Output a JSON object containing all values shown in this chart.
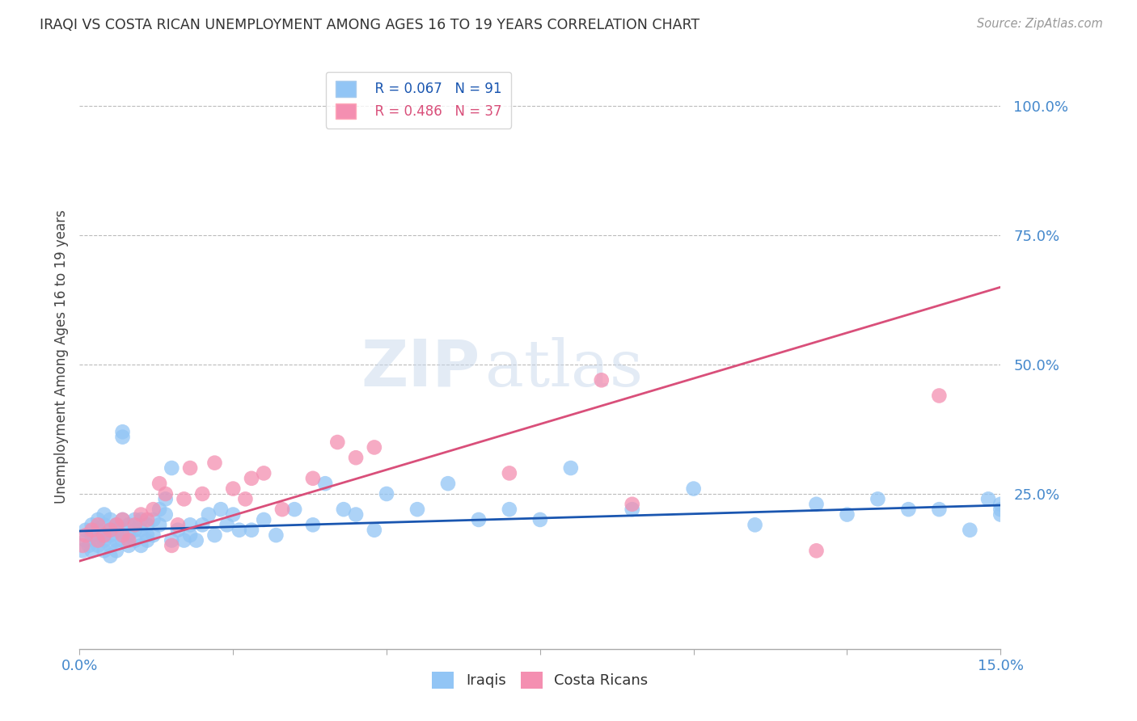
{
  "title": "IRAQI VS COSTA RICAN UNEMPLOYMENT AMONG AGES 16 TO 19 YEARS CORRELATION CHART",
  "source": "Source: ZipAtlas.com",
  "ylabel": "Unemployment Among Ages 16 to 19 years",
  "ytick_labels": [
    "100.0%",
    "75.0%",
    "50.0%",
    "25.0%"
  ],
  "ytick_values": [
    1.0,
    0.75,
    0.5,
    0.25
  ],
  "xlim": [
    0.0,
    0.15
  ],
  "ylim": [
    -0.05,
    1.08
  ],
  "legend_r1": "R = 0.067",
  "legend_n1": "N = 91",
  "legend_r2": "R = 0.486",
  "legend_n2": "N = 37",
  "iraqi_color": "#92C5F5",
  "costa_color": "#F48FB1",
  "iraqi_line_color": "#1A56B0",
  "costa_line_color": "#D94F7A",
  "watermark_zip": "ZIP",
  "watermark_atlas": "atlas",
  "grid_color": "#BBBBBB",
  "bg_color": "#FFFFFF",
  "title_color": "#333333",
  "source_color": "#999999",
  "tick_label_color": "#4488CC",
  "ylabel_color": "#444444",
  "iraqi_x": [
    0.0005,
    0.001,
    0.001,
    0.0015,
    0.002,
    0.002,
    0.002,
    0.003,
    0.003,
    0.003,
    0.003,
    0.004,
    0.004,
    0.004,
    0.004,
    0.004,
    0.005,
    0.005,
    0.005,
    0.005,
    0.005,
    0.006,
    0.006,
    0.006,
    0.006,
    0.007,
    0.007,
    0.007,
    0.007,
    0.007,
    0.008,
    0.008,
    0.008,
    0.009,
    0.009,
    0.009,
    0.01,
    0.01,
    0.01,
    0.011,
    0.011,
    0.011,
    0.012,
    0.012,
    0.013,
    0.013,
    0.014,
    0.014,
    0.015,
    0.015,
    0.016,
    0.017,
    0.018,
    0.018,
    0.019,
    0.02,
    0.021,
    0.022,
    0.023,
    0.024,
    0.025,
    0.026,
    0.028,
    0.03,
    0.032,
    0.035,
    0.038,
    0.04,
    0.043,
    0.045,
    0.048,
    0.05,
    0.055,
    0.06,
    0.065,
    0.07,
    0.075,
    0.08,
    0.09,
    0.1,
    0.11,
    0.12,
    0.125,
    0.13,
    0.135,
    0.14,
    0.145,
    0.148,
    0.15,
    0.15,
    0.15
  ],
  "iraqi_y": [
    0.14,
    0.16,
    0.18,
    0.15,
    0.17,
    0.19,
    0.14,
    0.15,
    0.18,
    0.2,
    0.16,
    0.14,
    0.17,
    0.19,
    0.16,
    0.21,
    0.15,
    0.18,
    0.2,
    0.17,
    0.13,
    0.16,
    0.19,
    0.18,
    0.14,
    0.2,
    0.37,
    0.36,
    0.18,
    0.16,
    0.17,
    0.19,
    0.15,
    0.18,
    0.2,
    0.16,
    0.15,
    0.18,
    0.2,
    0.17,
    0.19,
    0.16,
    0.2,
    0.17,
    0.22,
    0.19,
    0.24,
    0.21,
    0.3,
    0.16,
    0.18,
    0.16,
    0.19,
    0.17,
    0.16,
    0.19,
    0.21,
    0.17,
    0.22,
    0.19,
    0.21,
    0.18,
    0.18,
    0.2,
    0.17,
    0.22,
    0.19,
    0.27,
    0.22,
    0.21,
    0.18,
    0.25,
    0.22,
    0.27,
    0.2,
    0.22,
    0.2,
    0.3,
    0.22,
    0.26,
    0.19,
    0.23,
    0.21,
    0.24,
    0.22,
    0.22,
    0.18,
    0.24,
    0.21,
    0.22,
    0.23
  ],
  "costa_x": [
    0.0005,
    0.001,
    0.002,
    0.003,
    0.003,
    0.004,
    0.005,
    0.006,
    0.007,
    0.007,
    0.008,
    0.009,
    0.01,
    0.011,
    0.012,
    0.013,
    0.014,
    0.015,
    0.016,
    0.017,
    0.018,
    0.02,
    0.022,
    0.025,
    0.027,
    0.028,
    0.03,
    0.033,
    0.038,
    0.042,
    0.045,
    0.048,
    0.07,
    0.085,
    0.09,
    0.12,
    0.14
  ],
  "costa_y": [
    0.15,
    0.17,
    0.18,
    0.16,
    0.19,
    0.17,
    0.18,
    0.19,
    0.2,
    0.17,
    0.16,
    0.19,
    0.21,
    0.2,
    0.22,
    0.27,
    0.25,
    0.15,
    0.19,
    0.24,
    0.3,
    0.25,
    0.31,
    0.26,
    0.24,
    0.28,
    0.29,
    0.22,
    0.28,
    0.35,
    0.32,
    0.34,
    0.29,
    0.47,
    0.23,
    0.14,
    0.44
  ],
  "iraqi_trend_x0": 0.0,
  "iraqi_trend_y0": 0.178,
  "iraqi_trend_x1": 0.15,
  "iraqi_trend_y1": 0.228,
  "costa_trend_x0": 0.0,
  "costa_trend_y0": 0.12,
  "costa_trend_x1": 0.15,
  "costa_trend_y1": 0.65
}
